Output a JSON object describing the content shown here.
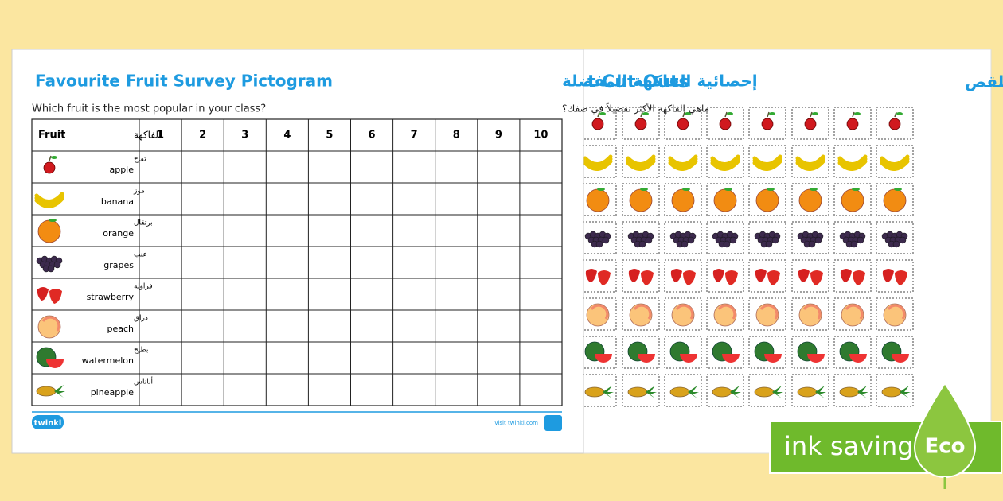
{
  "left_sheet": {
    "title": "Favourite Fruit Survey Pictogram",
    "title_ar": "إحصائية الفاكهة المفضلة",
    "question": "Which fruit is the most popular in your class?",
    "question_ar": "ماهي الفاكهة الأكثر تفضيلاً في صفك؟",
    "table": {
      "header": {
        "fruit": "Fruit",
        "fruit_ar": "الفاكهة",
        "columns": [
          1,
          2,
          3,
          4,
          5,
          6,
          7,
          8,
          9,
          10
        ]
      },
      "rows": [
        {
          "ar": "تفاح",
          "en": "apple"
        },
        {
          "ar": "موز",
          "en": "banana"
        },
        {
          "ar": "برتقال",
          "en": "orange"
        },
        {
          "ar": "عنب",
          "en": "grapes"
        },
        {
          "ar": "فراولة",
          "en": "strawberry"
        },
        {
          "ar": "دراق",
          "en": "peach"
        },
        {
          "ar": "بطيخ",
          "en": "watermelon"
        },
        {
          "ar": "أناناس",
          "en": "pineapple"
        }
      ]
    },
    "footer": {
      "logo": "twinkl",
      "url": "visit twinkl.com"
    }
  },
  "right_sheet": {
    "title": "t Cut-Outs",
    "title_ar": "صور الفاكهة المفضلة للقص"
  },
  "badge": {
    "text": "ink saving",
    "eco": "Eco"
  }
}
